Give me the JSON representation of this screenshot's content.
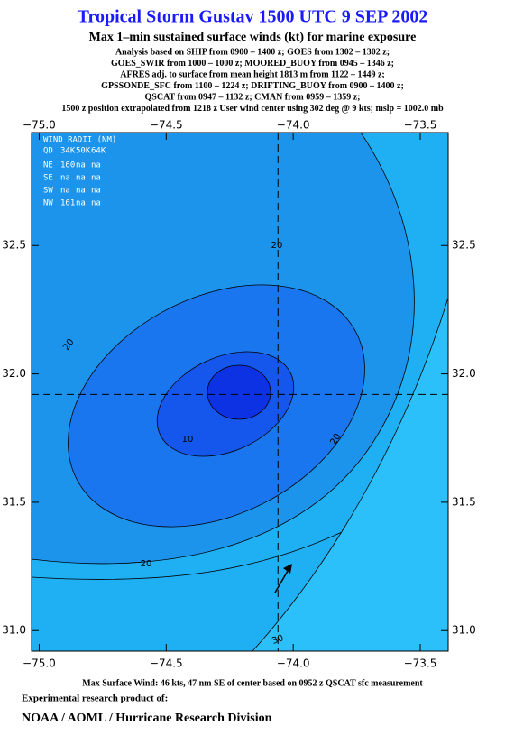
{
  "chart_data": {
    "type": "contour",
    "title": "Tropical Storm Gustav 1500 UTC 9 SEP 2002",
    "subtitle": "Max 1–min sustained surface winds (kt) for marine exposure",
    "analysis_lines": [
      "Analysis based on  SHIP from 0900 – 1400 z;  GOES from 1302 – 1302 z;",
      "GOES_SWIR from 1000 – 1000 z;  MOORED_BUOY from 0945 – 1346 z;",
      "AFRES adj. to surface from mean height 1813 m from 1122 – 1449 z;",
      "GPSSONDE_SFC from 1100 – 1224 z;  DRIFTING_BUOY from 0900 – 1400 z;",
      "QSCAT from 0947 – 1132 z;  CMAN from 0959 – 1359 z;",
      "1500 z position extrapolated from 1218 z User wind center using 302 deg @ 9 kts; mslp = 1002.0 mb"
    ],
    "xlim": [
      -75.03,
      -73.39
    ],
    "ylim": [
      30.92,
      32.94
    ],
    "xticks": [
      {
        "value": -75.0,
        "label": "−75.0"
      },
      {
        "value": -74.5,
        "label": "−74.5"
      },
      {
        "value": -74.0,
        "label": "−74.0"
      },
      {
        "value": -73.5,
        "label": "−73.5"
      }
    ],
    "yticks": [
      {
        "value": 31.0,
        "label": "31.0"
      },
      31.5,
      {
        "value": 32.0,
        "label": "32.0"
      },
      32.5
    ],
    "center": {
      "lon": -74.06,
      "lat": 31.92
    },
    "contour_labels": [
      20,
      20,
      10,
      20,
      20,
      30
    ],
    "wind_radii": {
      "title": "WIND RADII (NM)",
      "header": [
        "QD",
        "34K",
        "50K",
        "64K"
      ],
      "rows": [
        [
          "NE",
          160,
          "na",
          "na"
        ],
        [
          "SE",
          "na",
          "na",
          "na"
        ],
        [
          "SW",
          "na",
          "na",
          "na"
        ],
        [
          "NW",
          161,
          "na",
          "na"
        ]
      ]
    },
    "footer": [
      "Max Surface Wind: 46 kts, 47 nm SE of center based on 0952 z QSCAT sfc measurement",
      "Experimental research product of:",
      "NOAA / AOML / Hurricane Research Division"
    ]
  }
}
